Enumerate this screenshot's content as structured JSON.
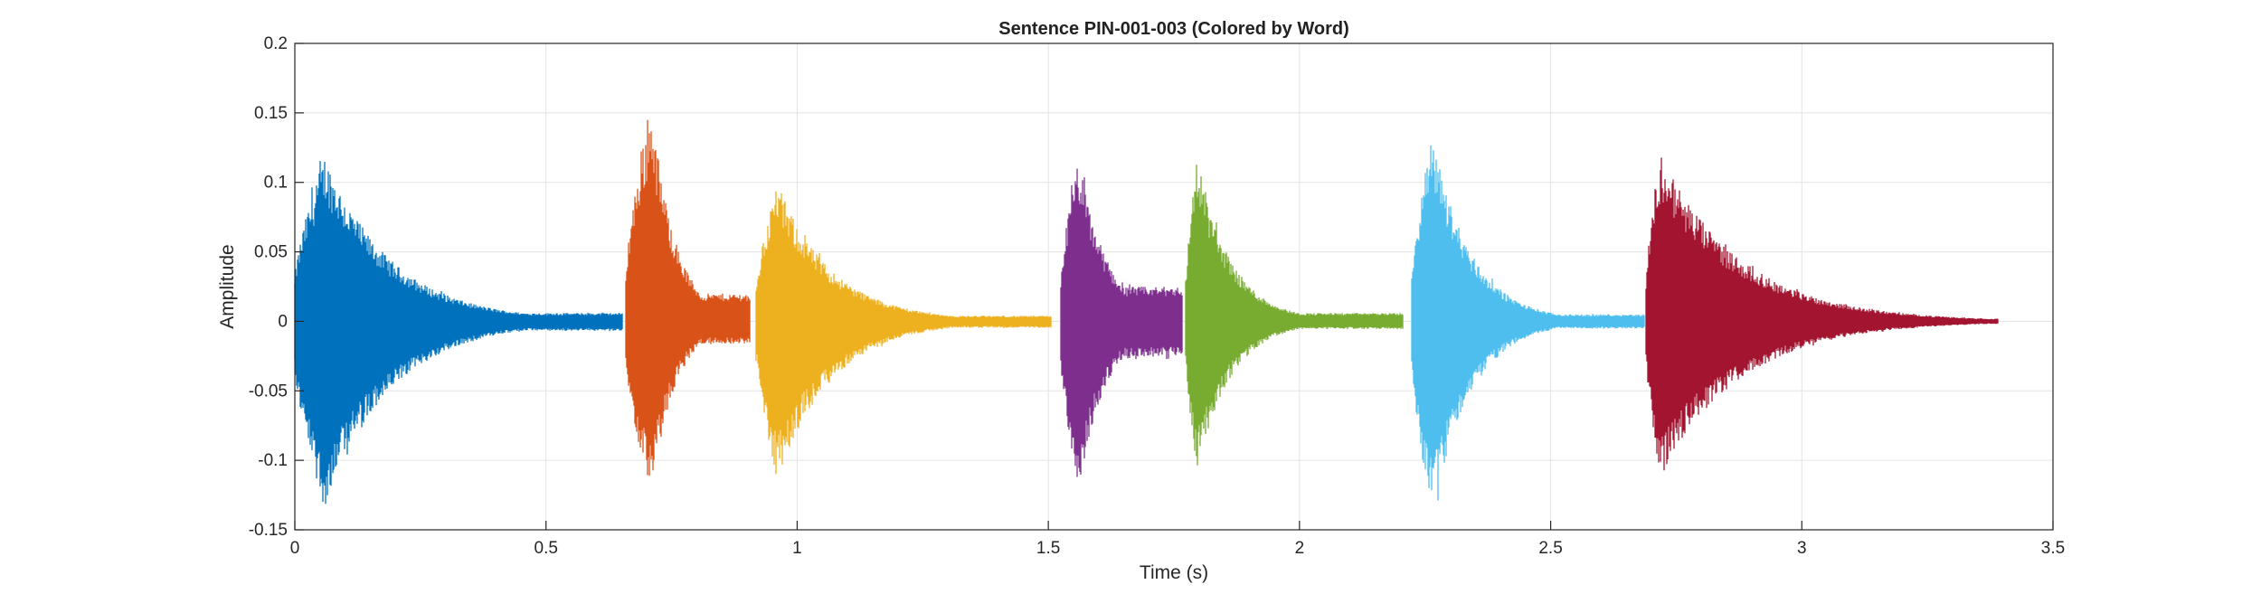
{
  "chart_data": {
    "type": "line",
    "title": "Sentence PIN-001-003 (Colored by Word)",
    "xlabel": "Time (s)",
    "ylabel": "Amplitude",
    "xlim": [
      0,
      3.5
    ],
    "ylim": [
      -0.15,
      0.2
    ],
    "xticks": [
      0,
      0.5,
      1,
      1.5,
      2,
      2.5,
      3,
      3.5
    ],
    "xtick_labels": [
      "0",
      "0.5",
      "1",
      "1.5",
      "2",
      "2.5",
      "3",
      "3.5"
    ],
    "yticks": [
      -0.15,
      -0.1,
      -0.05,
      0,
      0.05,
      0.1,
      0.15,
      0.2
    ],
    "ytick_labels": [
      "-0.15",
      "-0.1",
      "-0.05",
      "0",
      "0.05",
      "0.1",
      "0.15",
      "0.2"
    ],
    "grid": true,
    "legend": false,
    "series": [
      {
        "color": "#0072BD",
        "start": 0.0,
        "end": 0.65,
        "peak_time": 0.06,
        "peak_max": 0.12,
        "peak_min": -0.135,
        "tail": 0.006,
        "decay": 4.5
      },
      {
        "color": "#D95319",
        "start": 0.66,
        "end": 0.905,
        "peak_time": 0.71,
        "peak_max": 0.155,
        "peak_min": -0.125,
        "tail": 0.02,
        "decay": 4.0
      },
      {
        "color": "#EDB120",
        "start": 0.92,
        "end": 1.505,
        "peak_time": 0.96,
        "peak_max": 0.1,
        "peak_min": -0.115,
        "tail": 0.004,
        "decay": 5.0
      },
      {
        "color": "#7E2F8E",
        "start": 1.525,
        "end": 1.765,
        "peak_time": 1.56,
        "peak_max": 0.118,
        "peak_min": -0.12,
        "tail": 0.025,
        "decay": 3.5
      },
      {
        "color": "#77AC30",
        "start": 1.775,
        "end": 2.205,
        "peak_time": 1.795,
        "peak_max": 0.12,
        "peak_min": -0.11,
        "tail": 0.006,
        "decay": 6.0
      },
      {
        "color": "#4DBEEE",
        "start": 2.225,
        "end": 2.685,
        "peak_time": 2.265,
        "peak_max": 0.135,
        "peak_min": -0.14,
        "tail": 0.005,
        "decay": 5.5
      },
      {
        "color": "#A2142F",
        "start": 2.69,
        "end": 3.39,
        "peak_time": 2.72,
        "peak_max": 0.12,
        "peak_min": -0.112,
        "tail": 0.002,
        "decay": 4.2
      }
    ]
  }
}
